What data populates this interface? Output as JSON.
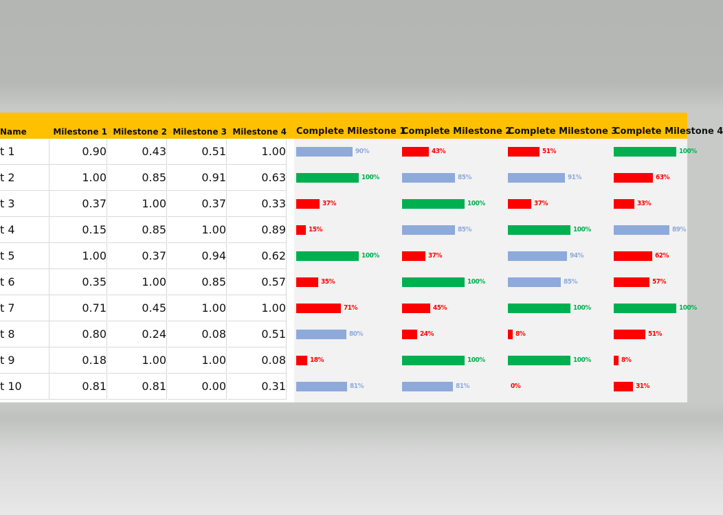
{
  "headers": {
    "name": "Name",
    "m1": "Milestone 1",
    "m2": "Milestone 2",
    "m3": "Milestone 3",
    "m4": "Milestone 4",
    "c1": "Complete Milestone 1",
    "c2": "Complete Milestone 2",
    "c3": "Complete Milestone 3",
    "c4": "Complete Milestone 4"
  },
  "colors": {
    "header_bg": "#ffc000",
    "green": "#00b050",
    "blue": "#8eaadb",
    "red": "#ff0000"
  },
  "rows": [
    {
      "name": "t 1",
      "values": [
        0.9,
        0.43,
        0.51,
        1.0
      ],
      "labels": [
        "0.90",
        "0.43",
        "0.51",
        "1.00"
      ]
    },
    {
      "name": "t 2",
      "values": [
        1.0,
        0.85,
        0.91,
        0.63
      ],
      "labels": [
        "1.00",
        "0.85",
        "0.91",
        "0.63"
      ]
    },
    {
      "name": "t 3",
      "values": [
        0.37,
        1.0,
        0.37,
        0.33
      ],
      "labels": [
        "0.37",
        "1.00",
        "0.37",
        "0.33"
      ]
    },
    {
      "name": "t 4",
      "values": [
        0.15,
        0.85,
        1.0,
        0.89
      ],
      "labels": [
        "0.15",
        "0.85",
        "1.00",
        "0.89"
      ]
    },
    {
      "name": "t 5",
      "values": [
        1.0,
        0.37,
        0.94,
        0.62
      ],
      "labels": [
        "1.00",
        "0.37",
        "0.94",
        "0.62"
      ]
    },
    {
      "name": "t 6",
      "values": [
        0.35,
        1.0,
        0.85,
        0.57
      ],
      "labels": [
        "0.35",
        "1.00",
        "0.85",
        "0.57"
      ]
    },
    {
      "name": "t 7",
      "values": [
        0.71,
        0.45,
        1.0,
        1.0
      ],
      "labels": [
        "0.71",
        "0.45",
        "1.00",
        "1.00"
      ]
    },
    {
      "name": "t 8",
      "values": [
        0.8,
        0.24,
        0.08,
        0.51
      ],
      "labels": [
        "0.80",
        "0.24",
        "0.08",
        "0.51"
      ]
    },
    {
      "name": "t 9",
      "values": [
        0.18,
        1.0,
        1.0,
        0.08
      ],
      "labels": [
        "0.18",
        "1.00",
        "1.00",
        "0.08"
      ]
    },
    {
      "name": "t 10",
      "values": [
        0.81,
        0.81,
        0.0,
        0.31
      ],
      "labels": [
        "0.81",
        "0.81",
        "0.00",
        "0.31"
      ]
    }
  ],
  "percent_labels": [
    [
      "90%",
      "43%",
      "51%",
      "100%"
    ],
    [
      "100%",
      "85%",
      "91%",
      "63%"
    ],
    [
      "37%",
      "100%",
      "37%",
      "33%"
    ],
    [
      "15%",
      "85%",
      "100%",
      "89%"
    ],
    [
      "100%",
      "37%",
      "94%",
      "62%"
    ],
    [
      "35%",
      "100%",
      "85%",
      "57%"
    ],
    [
      "71%",
      "45%",
      "100%",
      "100%"
    ],
    [
      "80%",
      "24%",
      "8%",
      "51%"
    ],
    [
      "18%",
      "100%",
      "100%",
      "8%"
    ],
    [
      "81%",
      "81%",
      "0%",
      "31%"
    ]
  ]
}
